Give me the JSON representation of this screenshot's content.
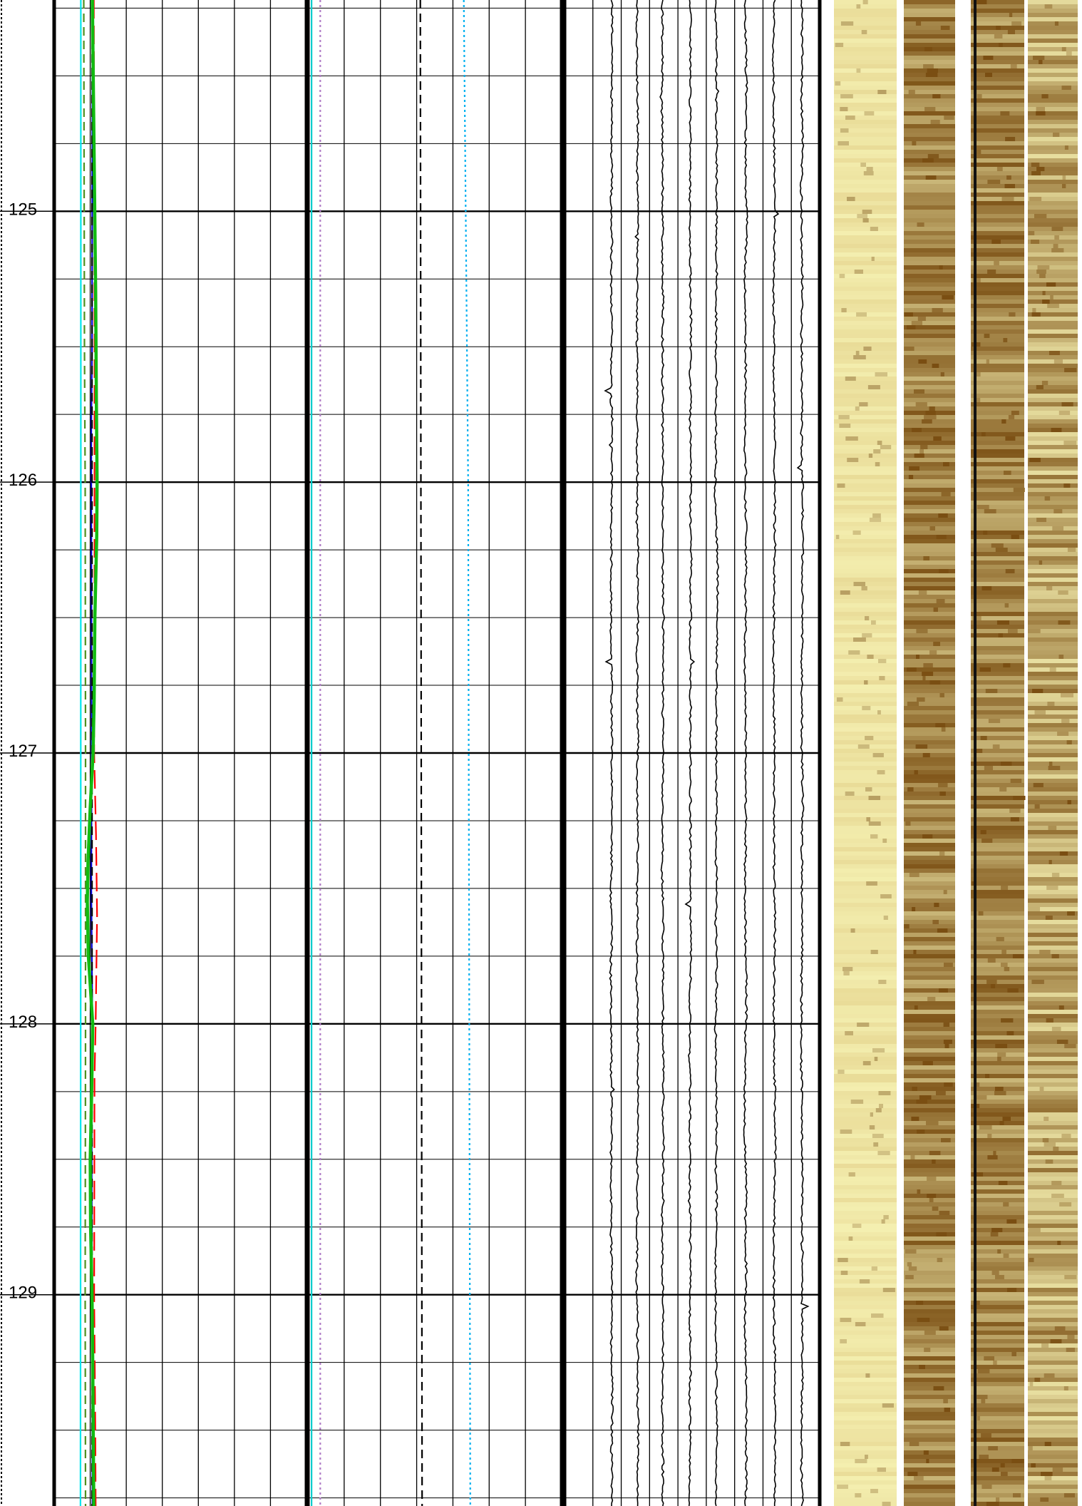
{
  "chart_data": {
    "type": "line",
    "title": "",
    "depth_axis": {
      "range": [
        124.22,
        129.78
      ],
      "ticks": [
        125,
        126,
        127,
        128,
        129
      ],
      "tick_labels": [
        "125",
        "126",
        "127",
        "128",
        "129"
      ]
    },
    "grid": true,
    "tracks": [
      {
        "id": "track-1",
        "series": [
          {
            "style": "solid",
            "color": "#00e5ee",
            "points": [
              [
                124.22,
                0.74
              ],
              [
                126.0,
                0.74
              ],
              [
                128.0,
                0.735
              ],
              [
                129.78,
                0.73
              ]
            ]
          },
          {
            "style": "dashed",
            "color": "#4f8f1f",
            "points": [
              [
                124.22,
                0.82
              ],
              [
                125.5,
                0.84
              ],
              [
                126.0,
                0.86
              ],
              [
                127.0,
                0.87
              ],
              [
                128.0,
                0.87
              ],
              [
                129.0,
                0.86
              ],
              [
                129.78,
                0.87
              ]
            ]
          },
          {
            "style": "solid",
            "color": "#0000cc",
            "points": [
              [
                124.22,
                1.06
              ],
              [
                125.5,
                1.05
              ],
              [
                125.8,
                1.03
              ],
              [
                126.0,
                1.03
              ],
              [
                127.0,
                1.04
              ],
              [
                127.5,
                1.03
              ],
              [
                128.0,
                1.06
              ],
              [
                128.5,
                1.04
              ],
              [
                129.0,
                1.05
              ],
              [
                129.78,
                1.06
              ]
            ]
          },
          {
            "style": "dashed",
            "color": "#000000",
            "points": [
              [
                124.22,
                1.05
              ],
              [
                129.78,
                1.05
              ]
            ]
          },
          {
            "style": "long-dash",
            "color": "#ff0000",
            "points": [
              [
                124.22,
                1.1
              ],
              [
                125.5,
                1.12
              ],
              [
                126.5,
                1.12
              ],
              [
                127.0,
                1.11
              ],
              [
                127.3,
                1.16
              ],
              [
                127.6,
                1.19
              ],
              [
                128.0,
                1.15
              ],
              [
                128.2,
                1.12
              ],
              [
                129.0,
                1.11
              ],
              [
                129.5,
                1.14
              ],
              [
                129.78,
                1.15
              ]
            ]
          },
          {
            "style": "thick",
            "color": "#11bb11",
            "points": [
              [
                124.22,
                1.06
              ],
              [
                125.3,
                1.15
              ],
              [
                125.7,
                1.17
              ],
              [
                126.0,
                1.19
              ],
              [
                126.2,
                1.18
              ],
              [
                126.5,
                1.13
              ],
              [
                126.8,
                1.11
              ],
              [
                127.0,
                1.08
              ],
              [
                127.2,
                1.0
              ],
              [
                127.4,
                0.94
              ],
              [
                127.55,
                0.92
              ],
              [
                127.75,
                0.95
              ],
              [
                128.0,
                1.07
              ],
              [
                128.25,
                1.04
              ],
              [
                128.5,
                1.0
              ],
              [
                128.75,
                1.01
              ],
              [
                129.0,
                1.05
              ],
              [
                129.25,
                1.07
              ],
              [
                129.78,
                1.1
              ]
            ]
          }
        ]
      },
      {
        "id": "track-2",
        "series": [
          {
            "style": "solid",
            "color": "#00cccc",
            "points": [
              [
                124.22,
                0.1
              ],
              [
                129.78,
                0.1
              ]
            ]
          },
          {
            "style": "dotted",
            "color": "#b07cc6",
            "points": [
              [
                124.22,
                0.34
              ],
              [
                129.78,
                0.34
              ]
            ]
          },
          {
            "style": "dashed",
            "color": "#000000",
            "points": [
              [
                124.22,
                3.1
              ],
              [
                129.78,
                3.15
              ]
            ]
          },
          {
            "style": "dotted",
            "color": "#00b0f0",
            "points": [
              [
                124.22,
                4.3
              ],
              [
                126.0,
                4.42
              ],
              [
                129.78,
                4.48
              ]
            ]
          }
        ]
      },
      {
        "id": "track-3",
        "curves": 8,
        "baselines": [
          0.85,
          1.32,
          1.78,
          2.28,
          2.75,
          3.28,
          3.8,
          4.3
        ],
        "color": "#000000"
      },
      {
        "id": "track-4",
        "type": "image",
        "colors": {
          "light": "#f4efb0",
          "mid": "#c8a04e",
          "dark": "#7a4e12"
        }
      }
    ]
  }
}
